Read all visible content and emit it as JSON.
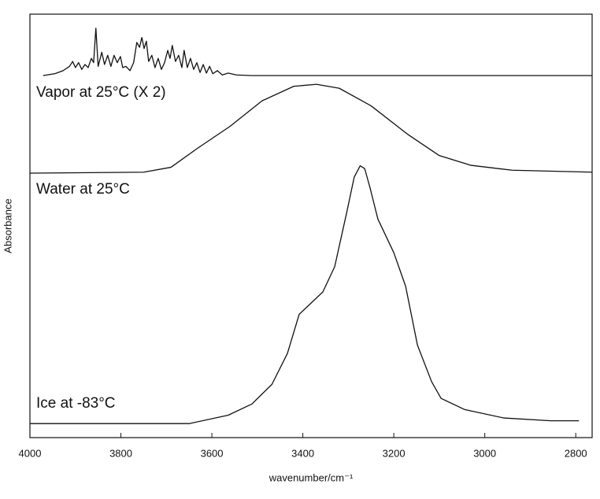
{
  "chart_data": [
    {
      "type": "line",
      "label": "Vapor at 25°C (X 2)",
      "color": "#111111",
      "xlim": [
        4000,
        2764
      ],
      "ylim": [
        0,
        1
      ],
      "x": [
        3971,
        3945,
        3927,
        3913,
        3906,
        3900,
        3893,
        3886,
        3879,
        3872,
        3865,
        3860,
        3855,
        3850,
        3842,
        3836,
        3829,
        3822,
        3815,
        3808,
        3801,
        3796,
        3789,
        3780,
        3772,
        3765,
        3759,
        3754,
        3749,
        3744,
        3739,
        3732,
        3725,
        3718,
        3711,
        3704,
        3697,
        3692,
        3687,
        3680,
        3673,
        3666,
        3661,
        3654,
        3647,
        3640,
        3633,
        3626,
        3619,
        3612,
        3605,
        3598,
        3588,
        3577,
        3564,
        3546,
        3512,
        2764
      ],
      "values": [
        0,
        0.03,
        0.08,
        0.15,
        0.23,
        0.13,
        0.21,
        0.1,
        0.18,
        0.13,
        0.28,
        0.21,
        0.77,
        0.15,
        0.38,
        0.18,
        0.33,
        0.15,
        0.33,
        0.21,
        0.31,
        0.13,
        0.15,
        0.08,
        0.21,
        0.54,
        0.46,
        0.62,
        0.44,
        0.56,
        0.23,
        0.33,
        0.13,
        0.28,
        0.1,
        0.21,
        0.41,
        0.28,
        0.49,
        0.23,
        0.33,
        0.13,
        0.41,
        0.13,
        0.28,
        0.1,
        0.21,
        0.05,
        0.18,
        0.04,
        0.15,
        0.03,
        0.08,
        0.01,
        0.04,
        0.01,
        0,
        0
      ]
    },
    {
      "type": "line",
      "label": "Water at 25°C",
      "color": "#111111",
      "xlim": [
        4000,
        2764
      ],
      "ylim": [
        0,
        1
      ],
      "x": [
        4000,
        3750,
        3690,
        3630,
        3560,
        3490,
        3420,
        3370,
        3320,
        3250,
        3170,
        3100,
        3030,
        2940,
        2764
      ],
      "values": [
        0,
        0.01,
        0.06,
        0.26,
        0.48,
        0.74,
        0.89,
        0.91,
        0.87,
        0.69,
        0.4,
        0.18,
        0.08,
        0.03,
        0.01
      ]
    },
    {
      "type": "line",
      "label": "Ice at -83°C",
      "color": "#111111",
      "xlim": [
        4000,
        2764
      ],
      "ylim": [
        0,
        1
      ],
      "x": [
        4000,
        3650,
        3564,
        3512,
        3468,
        3434,
        3408,
        3382,
        3356,
        3330,
        3304,
        3287,
        3274,
        3264,
        3252,
        3235,
        3200,
        3174,
        3148,
        3117,
        3096,
        3044,
        2958,
        2854,
        2793
      ],
      "values": [
        0.05,
        0.05,
        0.08,
        0.12,
        0.19,
        0.3,
        0.44,
        0.48,
        0.52,
        0.61,
        0.8,
        0.93,
        0.97,
        0.96,
        0.89,
        0.78,
        0.66,
        0.54,
        0.33,
        0.2,
        0.14,
        0.1,
        0.07,
        0.06,
        0.06
      ],
      "xticks": [
        4000,
        3800,
        3600,
        3400,
        3200,
        3000,
        2800
      ],
      "xlabel": "wavenumber/cm⁻¹",
      "ylabel": "Absorbance"
    }
  ]
}
